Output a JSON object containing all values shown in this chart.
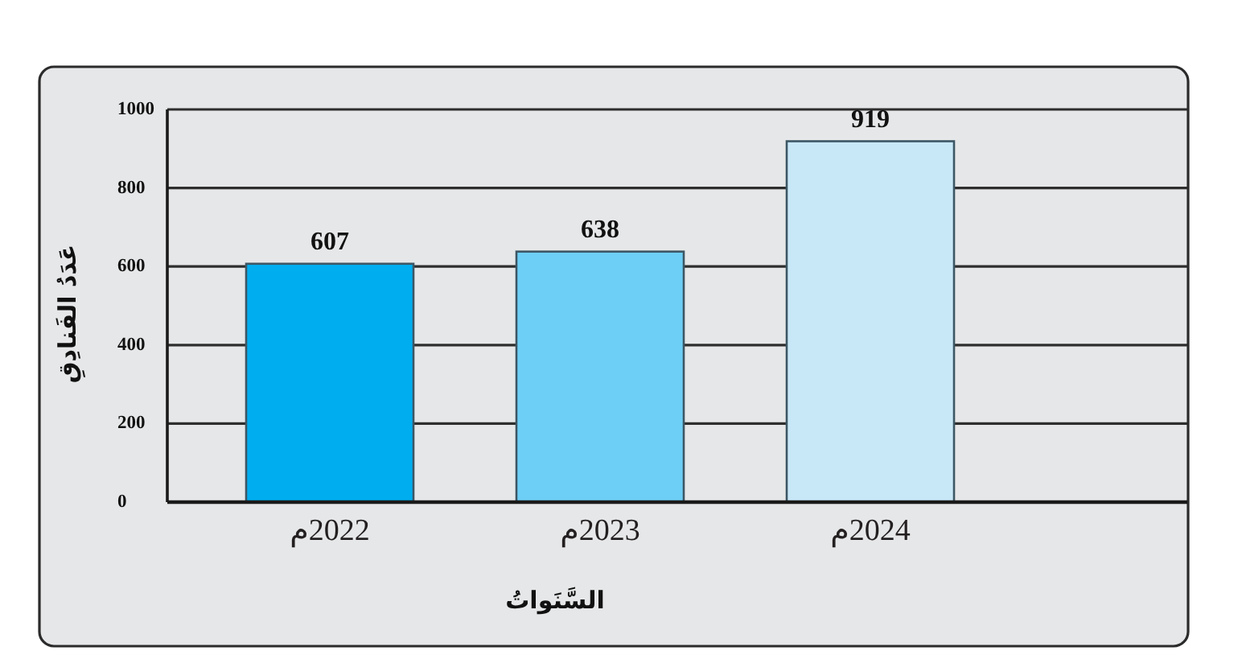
{
  "chart_data": {
    "type": "bar",
    "xlabel": "السَّنَواتُ",
    "ylabel": "عَدَدُ الفَنادِقِ",
    "categories": [
      "2022م",
      "2023م",
      "2024م"
    ],
    "values": [
      607,
      638,
      919
    ],
    "colors": [
      "#00aeef",
      "#6dcff6",
      "#c8e8f8"
    ],
    "ylim": [
      0,
      1000
    ],
    "yticks": [
      0,
      200,
      400,
      600,
      800,
      1000
    ],
    "grid": "y",
    "data_labels": true
  }
}
